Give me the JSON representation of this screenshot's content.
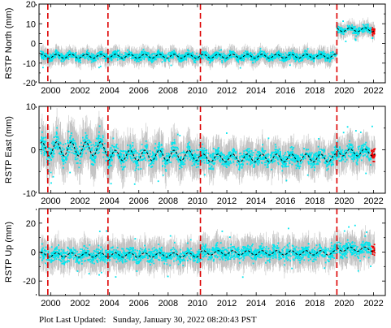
{
  "footer": {
    "label": "Plot Last Updated:",
    "date": "Sunday, January 30, 2022 08:20:43 PST"
  },
  "colors": {
    "error_bars": "#b8b8b8",
    "points": "#00e5ee",
    "recent_points": "#ee0000",
    "model_line": "#000000",
    "offset_lines": "#dd0000"
  },
  "chart_data": [
    {
      "type": "scatter",
      "ylabel": "RSTP North (mm)",
      "xlim": [
        1999.2,
        2022.8
      ],
      "ylim": [
        -20,
        20
      ],
      "yticks": [
        -20,
        -10,
        0,
        10,
        20
      ],
      "xticks": [
        2000,
        2002,
        2004,
        2006,
        2008,
        2010,
        2012,
        2014,
        2016,
        2018,
        2020,
        2022
      ],
      "xtick_labels": [
        "2000",
        "2002",
        "2004",
        "2006",
        "2008",
        "2010",
        "2012",
        "2014",
        "2016",
        "2018",
        "2020",
        "2022"
      ],
      "offsets": [
        1999.8,
        2003.9,
        2010.2,
        2019.5
      ],
      "segments": [
        {
          "x0": 1999.3,
          "x1": 2019.5,
          "level": -6.5,
          "amp": 1.0,
          "noise": 2.6
        },
        {
          "x0": 2019.5,
          "x1": 2022.1,
          "level": 7.0,
          "amp": 1.0,
          "noise": 2.4
        }
      ]
    },
    {
      "type": "scatter",
      "ylabel": "RSTP East (mm)",
      "xlim": [
        1999.2,
        2022.8
      ],
      "ylim": [
        -10,
        10
      ],
      "yticks": [
        -10,
        0,
        10
      ],
      "xticks": [
        2000,
        2002,
        2004,
        2006,
        2008,
        2010,
        2012,
        2014,
        2016,
        2018,
        2020,
        2022
      ],
      "xtick_labels": [
        "2000",
        "2002",
        "2004",
        "2006",
        "2008",
        "2010",
        "2012",
        "2014",
        "2016",
        "2018",
        "2020",
        "2022"
      ],
      "offsets": [
        1999.8,
        2003.9,
        2010.2,
        2019.5
      ],
      "segments": [
        {
          "x0": 1999.3,
          "x1": 2003.9,
          "level": 0.2,
          "amp": 1.6,
          "noise": 3.2
        },
        {
          "x0": 2003.9,
          "x1": 2010.2,
          "level": -1.3,
          "amp": 1.2,
          "noise": 2.8
        },
        {
          "x0": 2010.2,
          "x1": 2019.5,
          "level": -1.9,
          "amp": 0.9,
          "noise": 2.4
        },
        {
          "x0": 2019.5,
          "x1": 2022.1,
          "level": -0.6,
          "amp": 0.8,
          "noise": 2.4
        }
      ]
    },
    {
      "type": "scatter",
      "ylabel": "RSTP Up (mm)",
      "xlim": [
        1999.2,
        2022.8
      ],
      "ylim": [
        -30,
        30
      ],
      "yticks": [
        -20,
        0,
        20
      ],
      "xticks": [
        2000,
        2002,
        2004,
        2006,
        2008,
        2010,
        2012,
        2014,
        2016,
        2018,
        2020,
        2022
      ],
      "xtick_labels": [
        "2000",
        "2002",
        "2004",
        "2006",
        "2008",
        "2010",
        "2012",
        "2014",
        "2016",
        "2018",
        "2020",
        "2022"
      ],
      "offsets": [
        1999.8,
        2003.9,
        2010.2,
        2019.5
      ],
      "segments": [
        {
          "x0": 1999.3,
          "x1": 2003.9,
          "level": -2.0,
          "amp": 1.5,
          "noise": 6.5
        },
        {
          "x0": 2003.9,
          "x1": 2010.2,
          "level": -2.0,
          "amp": 1.5,
          "noise": 6.5
        },
        {
          "x0": 2010.2,
          "x1": 2019.5,
          "level": -0.5,
          "amp": 1.5,
          "noise": 6.5
        },
        {
          "x0": 2019.5,
          "x1": 2022.1,
          "level": 2.0,
          "amp": 1.5,
          "noise": 6.5
        }
      ]
    }
  ]
}
